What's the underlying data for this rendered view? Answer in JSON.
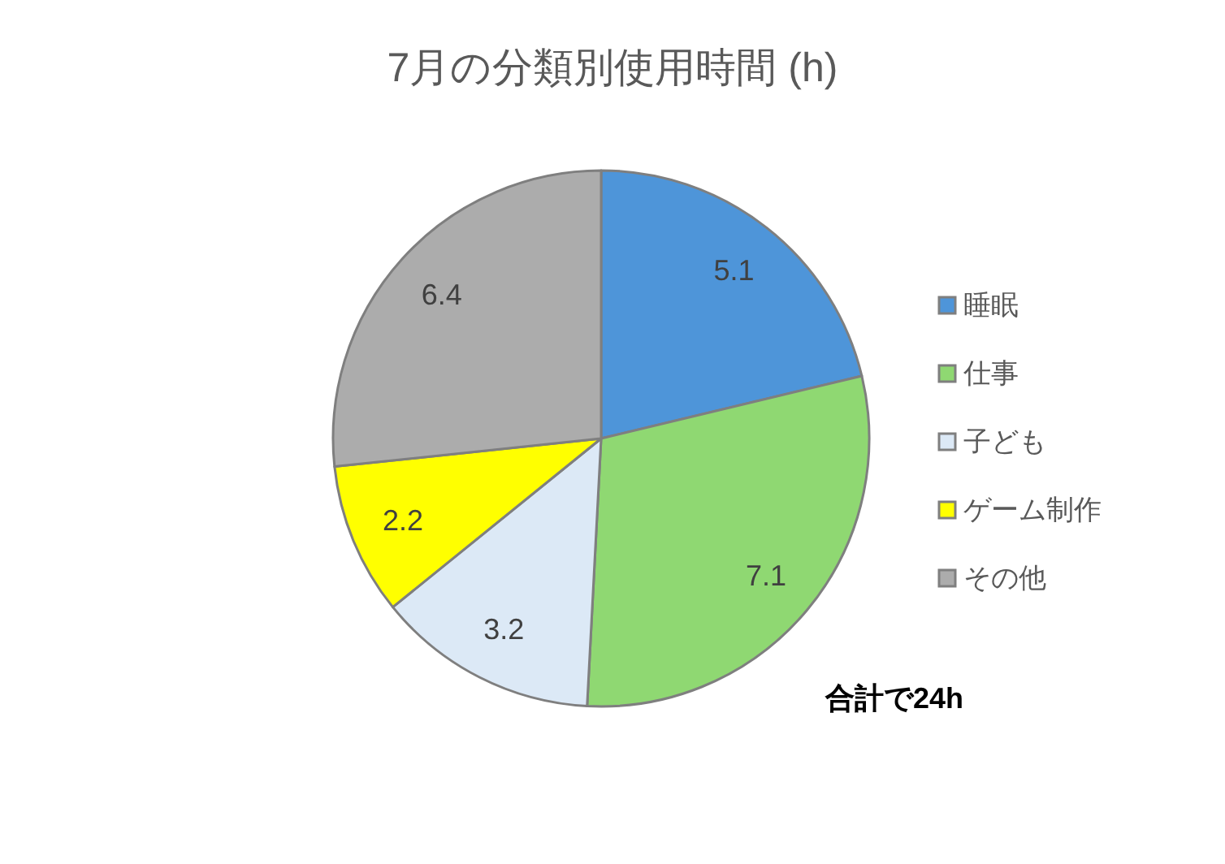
{
  "chart_data": {
    "type": "pie",
    "title": "7月の分類別使用時間 (h)",
    "categories": [
      "睡眠",
      "仕事",
      "子ども",
      "ゲーム制作",
      "その他"
    ],
    "values": [
      5.1,
      7.1,
      3.2,
      2.2,
      6.4
    ],
    "colors": [
      "#4e95d9",
      "#8fd872",
      "#dce9f6",
      "#ffff00",
      "#acacac"
    ],
    "data_labels": true,
    "legend": "right",
    "annotations": [
      "合計で24h"
    ]
  }
}
